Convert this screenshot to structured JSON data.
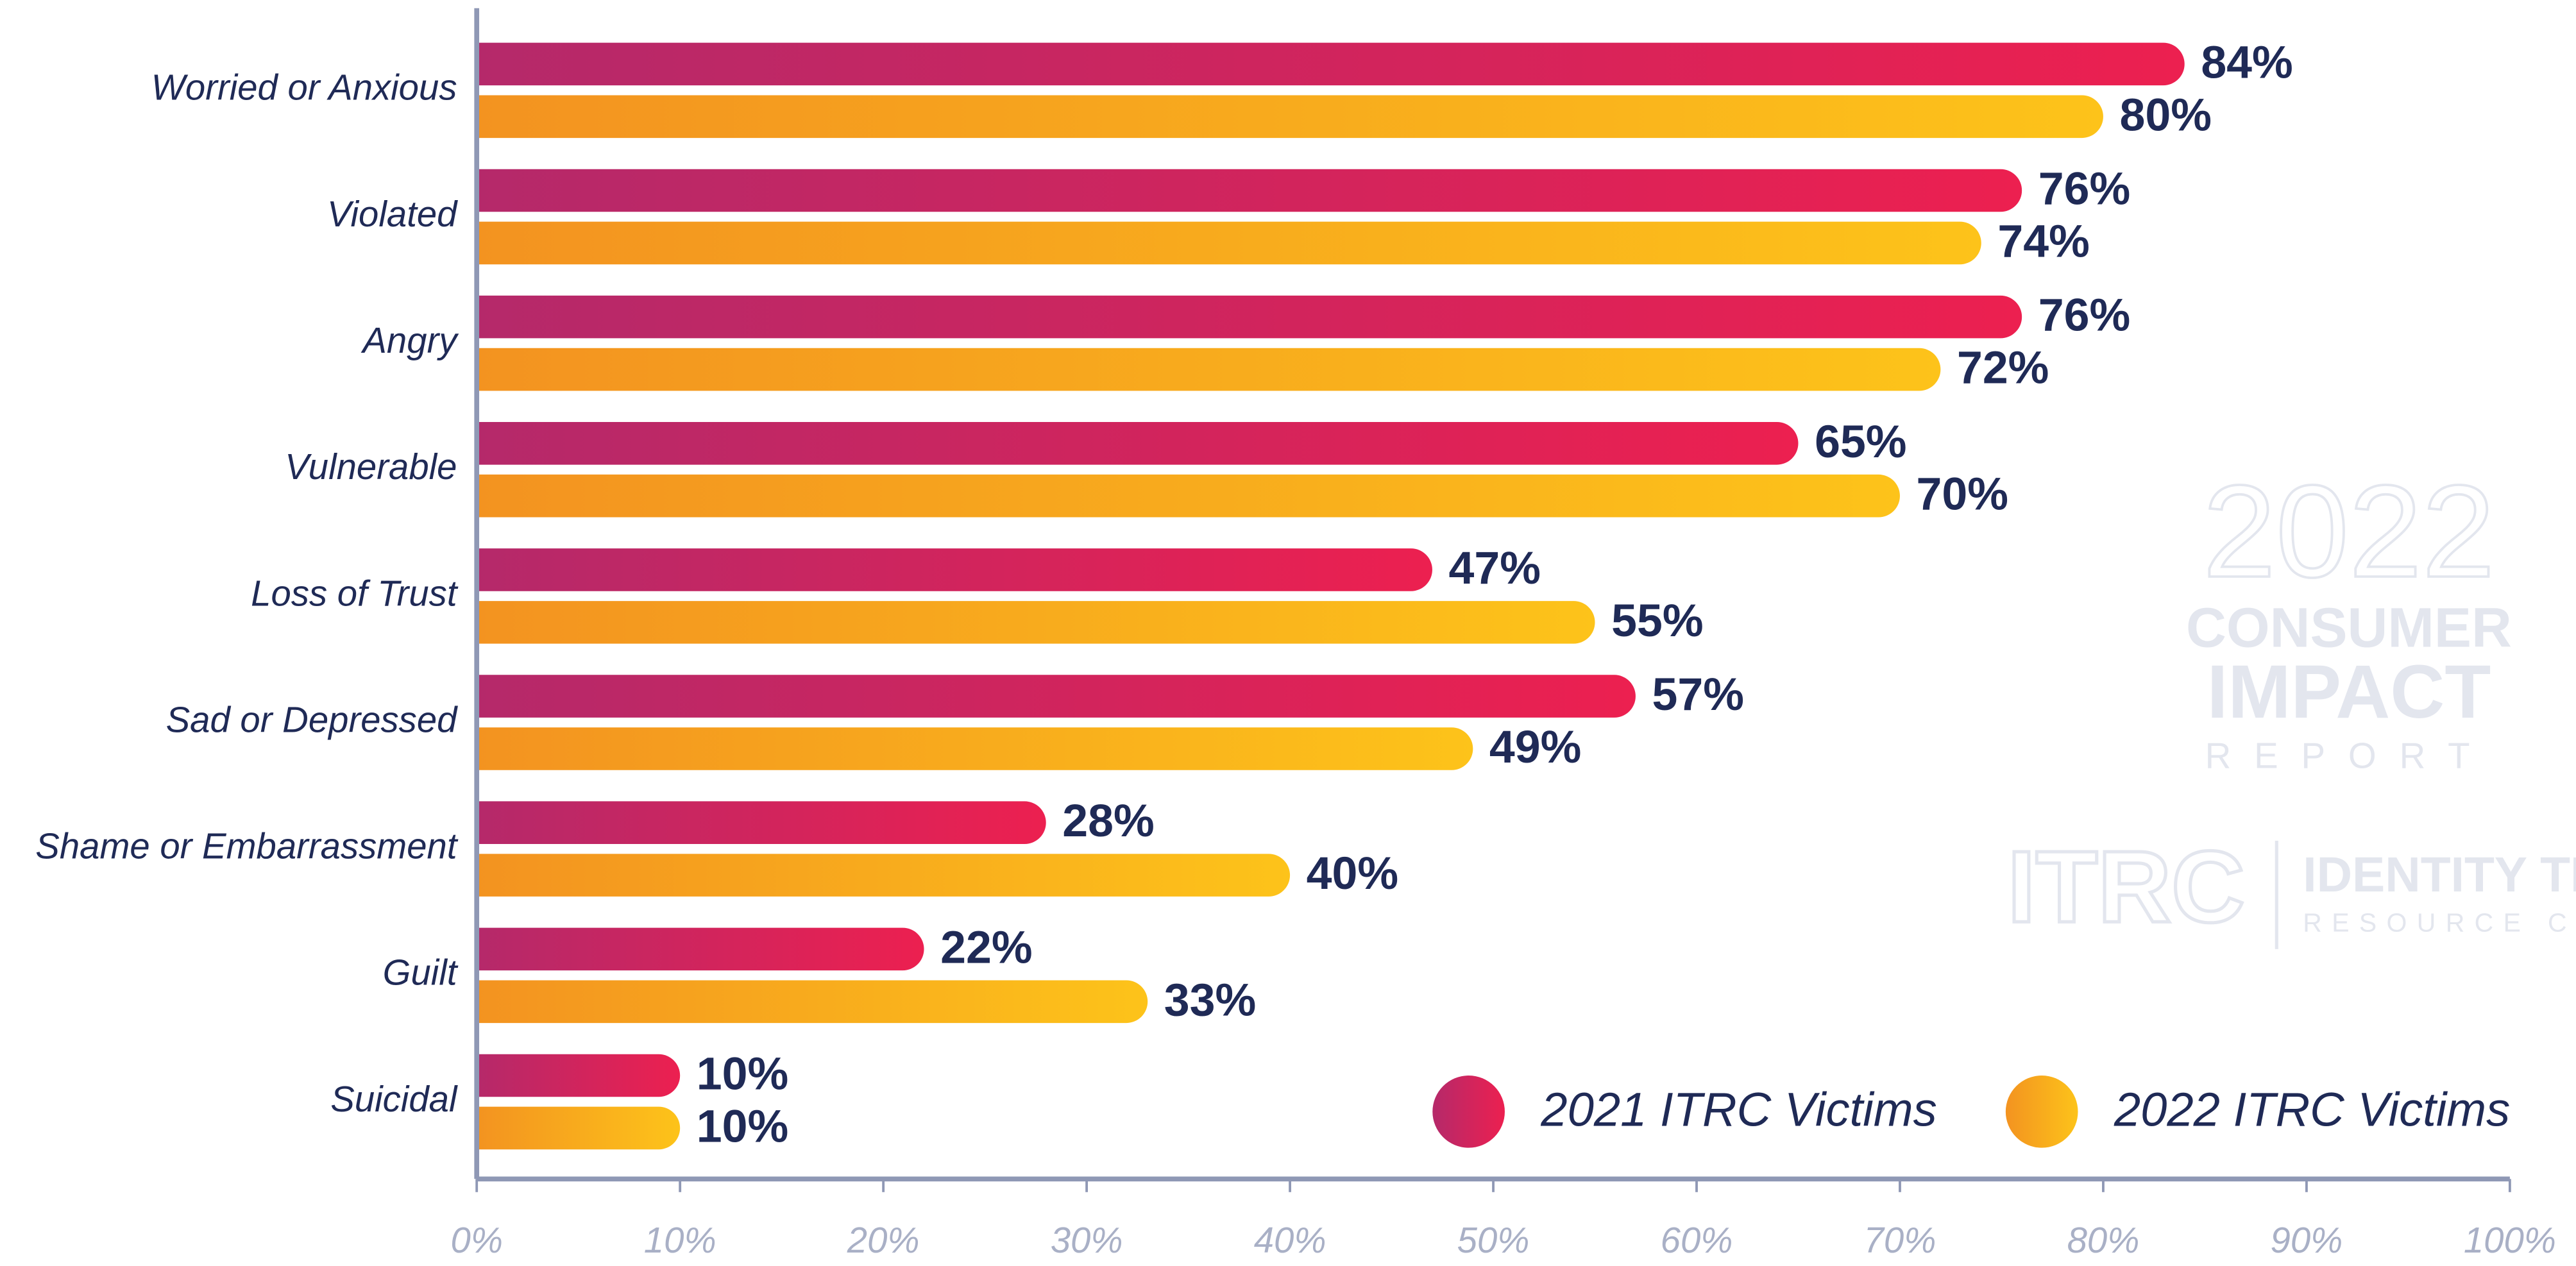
{
  "chart_data": {
    "type": "bar",
    "orientation": "horizontal",
    "categories": [
      "Worried or Anxious",
      "Violated",
      "Angry",
      "Vulnerable",
      "Loss of Trust",
      "Sad or Depressed",
      "Shame or Embarrassment",
      "Guilt",
      "Suicidal"
    ],
    "series": [
      {
        "name": "2021 ITRC Victims",
        "color": [
          "#b5296a",
          "#ec2050"
        ],
        "values": [
          84,
          76,
          76,
          65,
          47,
          57,
          28,
          22,
          10
        ],
        "value_labels": [
          "84%",
          "76%",
          "76%",
          "65%",
          "47%",
          "57%",
          "28%",
          "22%",
          "10%"
        ]
      },
      {
        "name": "2022 ITRC Victims",
        "color": [
          "#f39320",
          "#fdc31a"
        ],
        "values": [
          80,
          74,
          72,
          70,
          55,
          49,
          40,
          33,
          10
        ],
        "value_labels": [
          "80%",
          "74%",
          "72%",
          "70%",
          "55%",
          "49%",
          "40%",
          "33%",
          "10%"
        ]
      }
    ],
    "xlim": [
      0,
      100
    ],
    "xticks": [
      {
        "value": 0,
        "label": "0%"
      },
      {
        "value": 10,
        "label": "10%"
      },
      {
        "value": 20,
        "label": "20%"
      },
      {
        "value": 30,
        "label": "30%"
      },
      {
        "value": 40,
        "label": "40%"
      },
      {
        "value": 50,
        "label": "50%"
      },
      {
        "value": 60,
        "label": "60%"
      },
      {
        "value": 70,
        "label": "70%"
      },
      {
        "value": 80,
        "label": "80%"
      },
      {
        "value": 90,
        "label": "90%"
      },
      {
        "value": 100,
        "label": "100%"
      }
    ],
    "legend": "lower right",
    "watermark": {
      "year": "2022",
      "lines": [
        "CONSUMER",
        "IMPACT",
        "REPORT"
      ],
      "logo": "ITRC",
      "org": [
        "IDENTITY THEFT",
        "RESOURCE CENTER"
      ]
    }
  }
}
